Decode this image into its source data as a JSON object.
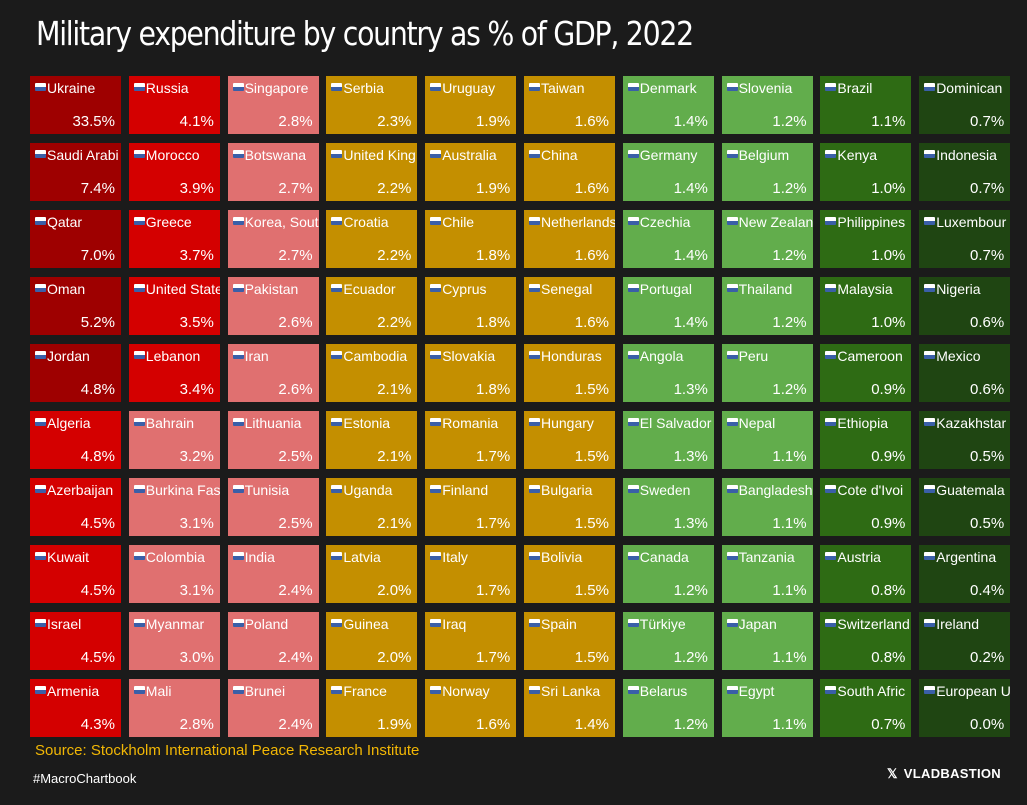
{
  "title": "Military expenditure by country as % of GDP, 2022",
  "source": "Source: Stockholm International Peace Research Institute",
  "hashtag": "#MacroChartbook",
  "brand": "VLADBASTION",
  "brand_icon": "x-logo-icon",
  "colors": {
    "background": "#1b1b1b",
    "dark_red": "#9e0000",
    "red": "#d40000",
    "salmon": "#e07070",
    "gold": "#c48f00",
    "light_green": "#62ad4c",
    "green": "#2e6b14",
    "dark_green": "#1f4512",
    "source_text": "#f2b705"
  },
  "chart_data": {
    "type": "table",
    "title": "Military expenditure by country as % of GDP, 2022",
    "unit": "% of GDP",
    "columns": [
      {
        "color": "#9e0000",
        "items": [
          [
            "Ukraine",
            "33.5%"
          ],
          [
            "Saudi Arabi",
            "7.4%"
          ],
          [
            "Qatar",
            "7.0%"
          ],
          [
            "Oman",
            "5.2%"
          ],
          [
            "Jordan",
            "4.8%"
          ]
        ]
      },
      {
        "color": "#d40000",
        "items": [
          [
            "Algeria",
            "4.8%"
          ],
          [
            "Azerbaijan",
            "4.5%"
          ],
          [
            "Kuwait",
            "4.5%"
          ],
          [
            "Israel",
            "4.5%"
          ],
          [
            "Armenia",
            "4.3%"
          ]
        ]
      },
      {
        "color": "#d40000",
        "items": [
          [
            "Russia",
            "4.1%"
          ],
          [
            "Morocco",
            "3.9%"
          ],
          [
            "Greece",
            "3.7%"
          ],
          [
            "United State",
            "3.5%"
          ],
          [
            "Lebanon",
            "3.4%"
          ]
        ]
      },
      {
        "color": "#e07070",
        "items": [
          [
            "Bahrain",
            "3.2%"
          ],
          [
            "Burkina Fas",
            "3.1%"
          ],
          [
            "Colombia",
            "3.1%"
          ],
          [
            "Myanmar",
            "3.0%"
          ],
          [
            "Mali",
            "2.8%"
          ]
        ]
      },
      {
        "color": "#e07070",
        "items": [
          [
            "Singapore",
            "2.8%"
          ],
          [
            "Botswana",
            "2.7%"
          ],
          [
            "Korea, Sout",
            "2.7%"
          ],
          [
            "Pakistan",
            "2.6%"
          ],
          [
            "Iran",
            "2.6%"
          ],
          [
            "Lithuania",
            "2.5%"
          ],
          [
            "Tunisia",
            "2.5%"
          ],
          [
            "India",
            "2.4%"
          ],
          [
            "Poland",
            "2.4%"
          ],
          [
            "Brunei",
            "2.4%"
          ]
        ]
      },
      {
        "color": "#c48f00",
        "items": [
          [
            "Serbia",
            "2.3%"
          ],
          [
            "United King",
            "2.2%"
          ],
          [
            "Croatia",
            "2.2%"
          ],
          [
            "Ecuador",
            "2.2%"
          ],
          [
            "Cambodia",
            "2.1%"
          ],
          [
            "Estonia",
            "2.1%"
          ],
          [
            "Uganda",
            "2.1%"
          ],
          [
            "Latvia",
            "2.0%"
          ],
          [
            "Guinea",
            "2.0%"
          ],
          [
            "France",
            "1.9%"
          ]
        ]
      },
      {
        "color": "#c48f00",
        "items": [
          [
            "Uruguay",
            "1.9%"
          ],
          [
            "Australia",
            "1.9%"
          ],
          [
            "Chile",
            "1.8%"
          ],
          [
            "Cyprus",
            "1.8%"
          ],
          [
            "Slovakia",
            "1.8%"
          ],
          [
            "Romania",
            "1.7%"
          ],
          [
            "Finland",
            "1.7%"
          ],
          [
            "Italy",
            "1.7%"
          ],
          [
            "Iraq",
            "1.7%"
          ],
          [
            "Norway",
            "1.6%"
          ]
        ]
      },
      {
        "color": "#c48f00",
        "items": [
          [
            "Taiwan",
            "1.6%"
          ],
          [
            "China",
            "1.6%"
          ],
          [
            "Netherlands",
            "1.6%"
          ],
          [
            "Senegal",
            "1.6%"
          ],
          [
            "Honduras",
            "1.5%"
          ],
          [
            "Hungary",
            "1.5%"
          ],
          [
            "Bulgaria",
            "1.5%"
          ],
          [
            "Bolivia",
            "1.5%"
          ],
          [
            "Spain",
            "1.5%"
          ],
          [
            "Sri Lanka",
            "1.4%"
          ]
        ]
      },
      {
        "color": "#62ad4c",
        "items": [
          [
            "Denmark",
            "1.4%"
          ],
          [
            "Germany",
            "1.4%"
          ],
          [
            "Czechia",
            "1.4%"
          ],
          [
            "Portugal",
            "1.4%"
          ],
          [
            "Angola",
            "1.3%"
          ],
          [
            "El Salvador",
            "1.3%"
          ],
          [
            "Sweden",
            "1.3%"
          ],
          [
            "Canada",
            "1.2%"
          ],
          [
            "Türkiye",
            "1.2%"
          ],
          [
            "Belarus",
            "1.2%"
          ]
        ]
      },
      {
        "color": "#62ad4c",
        "items": [
          [
            "Slovenia",
            "1.2%"
          ],
          [
            "Belgium",
            "1.2%"
          ],
          [
            "New Zealan",
            "1.2%"
          ],
          [
            "Thailand",
            "1.2%"
          ],
          [
            "Peru",
            "1.2%"
          ],
          [
            "Nepal",
            "1.1%"
          ],
          [
            "Bangladesh",
            "1.1%"
          ],
          [
            "Tanzania",
            "1.1%"
          ],
          [
            "Japan",
            "1.1%"
          ],
          [
            "Egypt",
            "1.1%"
          ]
        ]
      },
      {
        "color": "#2e6b14",
        "items": [
          [
            "Brazil",
            "1.1%"
          ],
          [
            "Kenya",
            "1.0%"
          ],
          [
            "Philippines",
            "1.0%"
          ],
          [
            "Malaysia",
            "1.0%"
          ],
          [
            "Cameroon",
            "0.9%"
          ],
          [
            "Ethiopia",
            "0.9%"
          ],
          [
            "Cote d'Ivoi",
            "0.9%"
          ],
          [
            "Austria",
            "0.8%"
          ],
          [
            "Switzerland",
            "0.8%"
          ],
          [
            "South Afric",
            "0.7%"
          ]
        ]
      },
      {
        "color": "#1f4512",
        "items": [
          [
            "Dominican",
            "0.7%"
          ],
          [
            "Indonesia",
            "0.7%"
          ],
          [
            "Luxembour",
            "0.7%"
          ],
          [
            "Nigeria",
            "0.6%"
          ],
          [
            "Mexico",
            "0.6%"
          ],
          [
            "Kazakhstar",
            "0.5%"
          ],
          [
            "Guatemala",
            "0.5%"
          ],
          [
            "Argentina",
            "0.4%"
          ],
          [
            "Ireland",
            "0.2%"
          ],
          [
            "European U",
            "0.0%"
          ]
        ]
      }
    ],
    "grid": false,
    "legend": "none"
  }
}
